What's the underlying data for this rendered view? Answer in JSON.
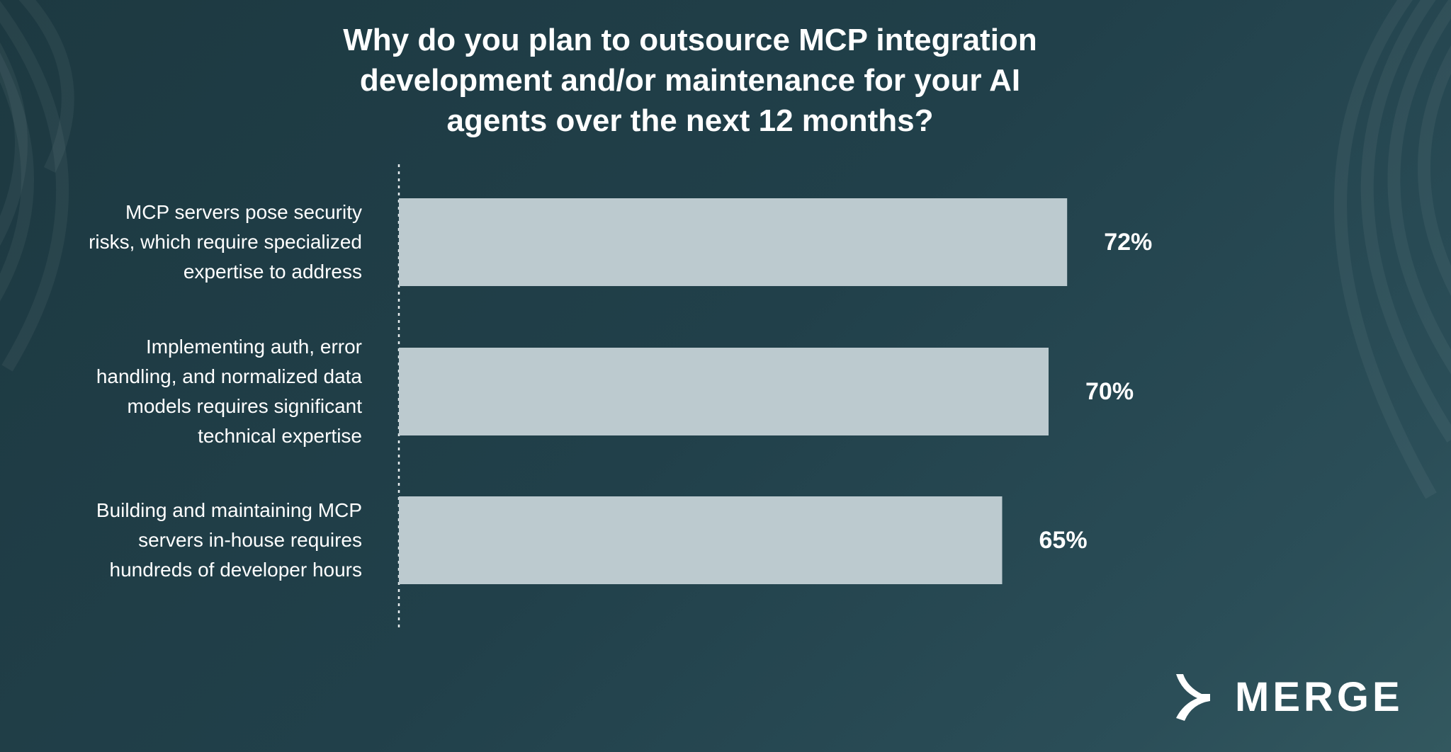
{
  "chart_data": {
    "type": "bar",
    "orientation": "horizontal",
    "title_lines": [
      "Why do you plan to outsource MCP integration",
      "development and/or maintenance for your AI",
      "agents over the next 12 months?"
    ],
    "categories": [
      [
        "MCP servers pose security",
        "risks, which require specialized",
        "expertise to address"
      ],
      [
        "Implementing auth, error",
        "handling, and normalized data",
        "models requires significant",
        "technical expertise"
      ],
      [
        "Building and maintaining MCP",
        "servers in-house requires",
        "hundreds of developer hours"
      ]
    ],
    "values": [
      72,
      70,
      65
    ],
    "value_labels": [
      "72%",
      "70%",
      "65%"
    ],
    "xlim": [
      0,
      100
    ],
    "bar_color": "#bccacf",
    "axis_line": "dotted",
    "grid": false,
    "legend": "none"
  },
  "brand": {
    "name": "MERGE",
    "text_color": "#ffffff"
  }
}
